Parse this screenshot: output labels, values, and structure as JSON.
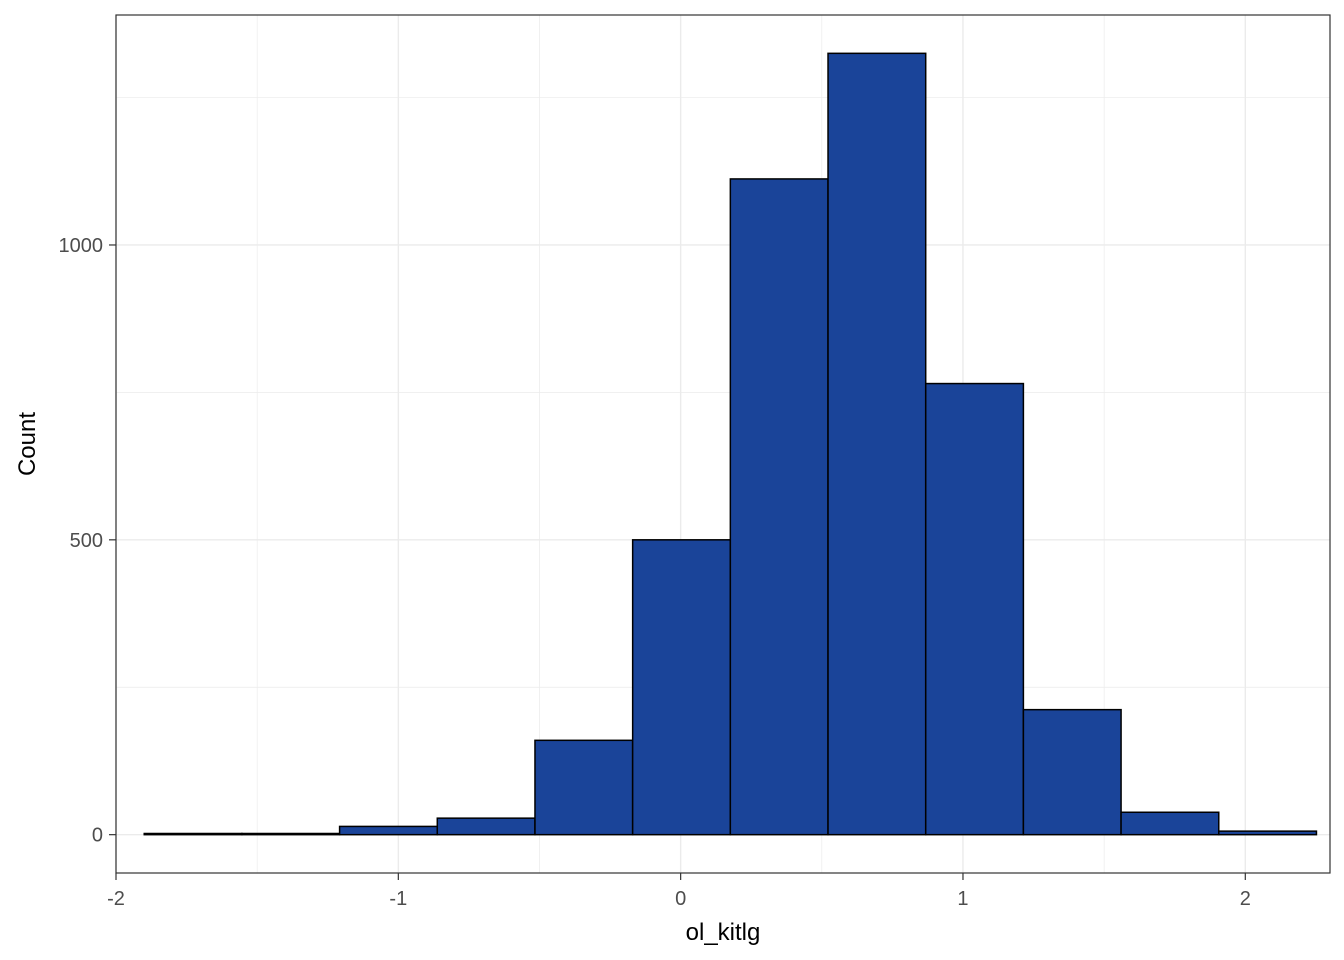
{
  "chart_data": {
    "type": "bar",
    "xlabel": "ol_kitlg",
    "ylabel": "Count",
    "xlim": [
      -2.0,
      2.3
    ],
    "ylim": [
      -65,
      1390
    ],
    "x_ticks": [
      -2,
      -1,
      0,
      1,
      2
    ],
    "x_tick_labels": [
      "-2",
      "-1",
      "0",
      "1",
      "2"
    ],
    "y_ticks": [
      0,
      500,
      1000
    ],
    "y_tick_labels": [
      "0",
      "500",
      "1000"
    ],
    "grid": true,
    "bin_edges": [
      -1.9,
      -1.554,
      -1.208,
      -0.862,
      -0.516,
      -0.17,
      0.176,
      0.522,
      0.868,
      1.214,
      1.56,
      1.906,
      2.252
    ],
    "values": [
      2,
      2,
      14,
      28,
      160,
      500,
      1112,
      1325,
      765,
      212,
      38,
      6
    ],
    "colors": {
      "fill": "#1a4499",
      "stroke": "#000000",
      "grid": "#ebebeb",
      "panel_border": "#333333"
    }
  }
}
